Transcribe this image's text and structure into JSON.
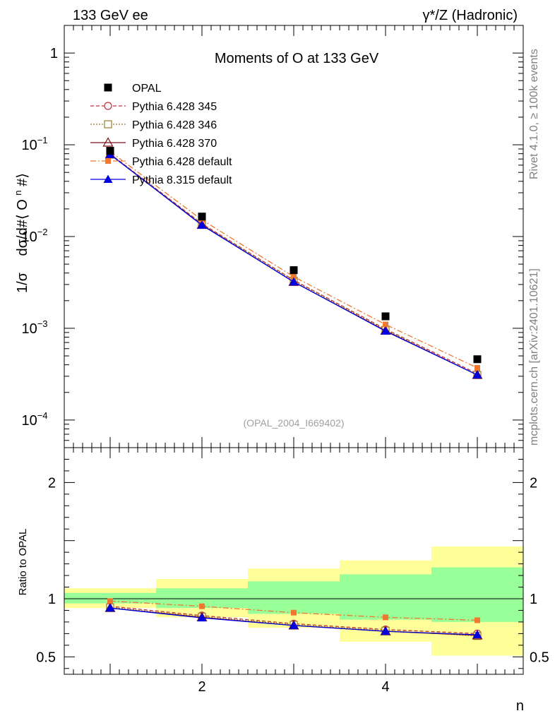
{
  "header": {
    "left": "133 GeV ee",
    "right": "γ*/Z (Hadronic)"
  },
  "side_labels": {
    "rivet": "Rivet 4.1.0, ≥ 100k events",
    "mcplots": "mcplots.cern.ch [arXiv:2401.10621]"
  },
  "chart_data": [
    {
      "type": "line",
      "title": "Moments of O at 133 GeV",
      "watermark": "(OPAL_2004_I669402)",
      "ylabel": "1/σ dσ/d#⟨ O^n #⟩",
      "ylabel_parts": [
        "1/σ",
        "dσ/d#⟨ O",
        "n",
        " #⟩"
      ],
      "yscale": "log",
      "xlim": [
        0.5,
        5.5
      ],
      "ylim": [
        5e-05,
        2
      ],
      "y_ticks": [
        {
          "value": 1,
          "base": "1",
          "exp": ""
        },
        {
          "value": 0.1,
          "base": "10",
          "exp": "−1"
        },
        {
          "value": 0.01,
          "base": "10",
          "exp": "−2"
        },
        {
          "value": 0.001,
          "base": "10",
          "exp": "−3"
        },
        {
          "value": 0.0001,
          "base": "10",
          "exp": "−4"
        }
      ],
      "x": [
        1,
        2,
        3,
        4,
        5
      ],
      "legend_position": "top-left",
      "data": {
        "name": "OPAL",
        "color": "#000000",
        "values": [
          0.086,
          0.0165,
          0.0043,
          0.00135,
          0.00046
        ]
      },
      "series": [
        {
          "name": "Pythia 6.428 345",
          "color": "#c0303a",
          "dash": "5,3",
          "marker": "circle-open",
          "values": [
            0.0795,
            0.0138,
            0.00335,
            0.00098,
            0.00032
          ]
        },
        {
          "name": "Pythia 6.428 346",
          "color": "#9a7a2a",
          "dash": "2,2",
          "marker": "square-open",
          "values": [
            0.0795,
            0.0137,
            0.0033,
            0.00096,
            0.00031
          ]
        },
        {
          "name": "Pythia 6.428 370",
          "color": "#7a1018",
          "dash": "",
          "marker": "triangle-open",
          "values": [
            0.0785,
            0.0134,
            0.0032,
            0.00094,
            0.00031
          ]
        },
        {
          "name": "Pythia 6.428 default",
          "color": "#f07830",
          "dash": "8,3,2,3",
          "marker": "square-filled",
          "values": [
            0.0845,
            0.0152,
            0.00365,
            0.0011,
            0.00037
          ]
        },
        {
          "name": "Pythia 8.315 default",
          "color": "#0000e0",
          "dash": "",
          "marker": "triangle-filled",
          "values": [
            0.0785,
            0.0133,
            0.0032,
            0.00093,
            0.00031
          ]
        }
      ]
    },
    {
      "type": "line",
      "ylabel": "Ratio to OPAL",
      "xlabel": "n",
      "xlim": [
        0.5,
        5.5
      ],
      "ylim": [
        0.35,
        2.3
      ],
      "y_ticks": [
        {
          "value": 2,
          "label": "2"
        },
        {
          "value": 1,
          "label": "1"
        },
        {
          "value": 0.5,
          "label": "0.5"
        }
      ],
      "x_ticks": [
        {
          "value": 2,
          "label": "2"
        },
        {
          "value": 4,
          "label": "4"
        }
      ],
      "x": [
        1,
        2,
        3,
        4,
        5
      ],
      "bands": [
        {
          "x0": 0.5,
          "x1": 1.5,
          "green": [
            0.96,
            1.05
          ],
          "yellow": [
            0.92,
            1.09
          ]
        },
        {
          "x0": 1.5,
          "x1": 2.5,
          "green": [
            0.92,
            1.09
          ],
          "yellow": [
            0.84,
            1.17
          ]
        },
        {
          "x0": 2.5,
          "x1": 3.5,
          "green": [
            0.87,
            1.15
          ],
          "yellow": [
            0.75,
            1.26
          ]
        },
        {
          "x0": 3.5,
          "x1": 4.5,
          "green": [
            0.82,
            1.21
          ],
          "yellow": [
            0.63,
            1.33
          ]
        },
        {
          "x0": 4.5,
          "x1": 5.5,
          "green": [
            0.8,
            1.27
          ],
          "yellow": [
            0.51,
            1.45
          ]
        }
      ],
      "series": [
        {
          "name": "Pythia 6.428 345",
          "values": [
            0.935,
            0.855,
            0.785,
            0.735,
            0.7
          ]
        },
        {
          "name": "Pythia 6.428 346",
          "values": [
            0.925,
            0.845,
            0.775,
            0.725,
            0.68
          ]
        },
        {
          "name": "Pythia 6.428 370",
          "values": [
            0.92,
            0.84,
            0.77,
            0.72,
            0.685
          ]
        },
        {
          "name": "Pythia 6.428 default",
          "values": [
            0.98,
            0.935,
            0.88,
            0.84,
            0.815
          ]
        },
        {
          "name": "Pythia 8.315 default",
          "values": [
            0.92,
            0.835,
            0.77,
            0.72,
            0.69
          ]
        }
      ]
    }
  ]
}
